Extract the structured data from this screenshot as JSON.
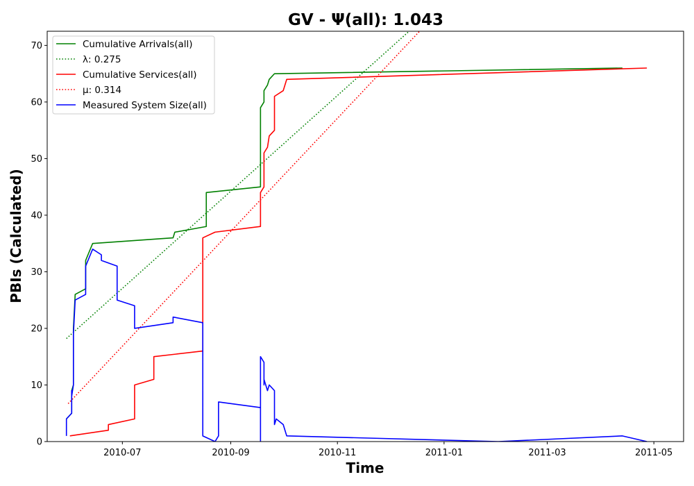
{
  "chart_data": {
    "type": "line",
    "title": "GV -  Ψ(all): 1.043",
    "xlabel": "Time",
    "ylabel": "PBIs (Calculated)",
    "xlim": [
      "2010-05-19",
      "2011-05-18"
    ],
    "ylim": [
      0,
      72.5
    ],
    "yticks": [
      0,
      10,
      20,
      30,
      40,
      50,
      60,
      70
    ],
    "xticks": [
      {
        "date": "2010-07-01",
        "label": "2010-07"
      },
      {
        "date": "2010-09-01",
        "label": "2010-09"
      },
      {
        "date": "2010-11-01",
        "label": "2010-11"
      },
      {
        "date": "2011-01-01",
        "label": "2011-01"
      },
      {
        "date": "2011-03-01",
        "label": "2011-03"
      },
      {
        "date": "2011-05-01",
        "label": "2011-05"
      }
    ],
    "grid": false,
    "legend_position": "top-left",
    "series": [
      {
        "name": "Cumulative Arrivals(all)",
        "color": "#008000",
        "style": "solid",
        "points": [
          [
            "2010-05-30",
            4
          ],
          [
            "2010-06-02",
            5
          ],
          [
            "2010-06-02",
            9
          ],
          [
            "2010-06-03",
            10
          ],
          [
            "2010-06-03",
            20
          ],
          [
            "2010-06-04",
            26
          ],
          [
            "2010-06-10",
            27
          ],
          [
            "2010-06-10",
            32
          ],
          [
            "2010-06-14",
            35
          ],
          [
            "2010-07-30",
            36
          ],
          [
            "2010-07-31",
            37
          ],
          [
            "2010-08-18",
            38
          ],
          [
            "2010-08-18",
            44
          ],
          [
            "2010-09-18",
            45
          ],
          [
            "2010-09-18",
            59
          ],
          [
            "2010-09-20",
            60
          ],
          [
            "2010-09-20",
            62
          ],
          [
            "2010-09-22",
            63
          ],
          [
            "2010-09-23",
            64
          ],
          [
            "2010-09-26",
            65
          ],
          [
            "2011-04-13",
            66
          ]
        ]
      },
      {
        "name": "λ: 0.275",
        "color": "#008000",
        "style": "dotted",
        "points": [
          [
            "2010-05-30",
            18.2
          ],
          [
            "2010-12-12",
            72.5
          ]
        ]
      },
      {
        "name": "Cumulative Services(all)",
        "color": "#ff0000",
        "style": "solid",
        "points": [
          [
            "2010-06-01",
            1
          ],
          [
            "2010-06-23",
            2
          ],
          [
            "2010-06-23",
            3
          ],
          [
            "2010-07-08",
            4
          ],
          [
            "2010-07-08",
            10
          ],
          [
            "2010-07-19",
            11
          ],
          [
            "2010-07-19",
            15
          ],
          [
            "2010-08-16",
            16
          ],
          [
            "2010-08-16",
            36
          ],
          [
            "2010-08-23",
            37
          ],
          [
            "2010-09-18",
            38
          ],
          [
            "2010-09-18",
            44
          ],
          [
            "2010-09-20",
            45
          ],
          [
            "2010-09-20",
            51
          ],
          [
            "2010-09-22",
            52
          ],
          [
            "2010-09-23",
            54
          ],
          [
            "2010-09-26",
            55
          ],
          [
            "2010-09-26",
            61
          ],
          [
            "2010-10-01",
            62
          ],
          [
            "2010-10-03",
            64
          ],
          [
            "2011-04-27",
            66
          ]
        ]
      },
      {
        "name": "μ: 0.314",
        "color": "#ff0000",
        "style": "dotted",
        "points": [
          [
            "2010-05-31",
            6.7
          ],
          [
            "2010-12-18",
            72.5
          ]
        ]
      },
      {
        "name": "Measured System Size(all)",
        "color": "#0000ff",
        "style": "solid",
        "points": [
          [
            "2010-05-30",
            1
          ],
          [
            "2010-05-30",
            4
          ],
          [
            "2010-06-02",
            5
          ],
          [
            "2010-06-02",
            9
          ],
          [
            "2010-06-02",
            8
          ],
          [
            "2010-06-03",
            10
          ],
          [
            "2010-06-03",
            18
          ],
          [
            "2010-06-03",
            19
          ],
          [
            "2010-06-04",
            25
          ],
          [
            "2010-06-10",
            26
          ],
          [
            "2010-06-10",
            31
          ],
          [
            "2010-06-14",
            34
          ],
          [
            "2010-06-19",
            33
          ],
          [
            "2010-06-19",
            32
          ],
          [
            "2010-06-28",
            31
          ],
          [
            "2010-06-28",
            25
          ],
          [
            "2010-07-08",
            24
          ],
          [
            "2010-07-08",
            20
          ],
          [
            "2010-07-30",
            21
          ],
          [
            "2010-07-30",
            22
          ],
          [
            "2010-08-16",
            21
          ],
          [
            "2010-08-16",
            1
          ],
          [
            "2010-08-23",
            0
          ],
          [
            "2010-08-25",
            1
          ],
          [
            "2010-08-25",
            7
          ],
          [
            "2010-09-18",
            6
          ],
          [
            "2010-09-18",
            0
          ],
          [
            "2010-09-18",
            15
          ],
          [
            "2010-09-20",
            14
          ],
          [
            "2010-09-20",
            10
          ],
          [
            "2010-09-20",
            11
          ],
          [
            "2010-09-22",
            9
          ],
          [
            "2010-09-23",
            10
          ],
          [
            "2010-09-26",
            9
          ],
          [
            "2010-09-26",
            3
          ],
          [
            "2010-09-27",
            4
          ],
          [
            "2010-10-01",
            3
          ],
          [
            "2010-10-03",
            1
          ],
          [
            "2011-02-01",
            0
          ],
          [
            "2011-04-13",
            1
          ],
          [
            "2011-04-27",
            0
          ]
        ]
      }
    ]
  }
}
